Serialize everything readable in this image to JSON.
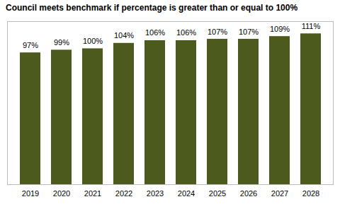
{
  "chart_data": {
    "type": "bar",
    "title": "Council meets benchmark if percentage is greater than or equal to 100%",
    "categories": [
      "2019",
      "2020",
      "2021",
      "2022",
      "2023",
      "2024",
      "2025",
      "2026",
      "2027",
      "2028"
    ],
    "values": [
      97,
      99,
      100,
      104,
      106,
      106,
      107,
      107,
      109,
      111
    ],
    "value_labels": [
      "97%",
      "99%",
      "100%",
      "104%",
      "106%",
      "106%",
      "107%",
      "107%",
      "109%",
      "111%"
    ],
    "color": "#4d5a1e",
    "ylim": [
      0,
      120
    ],
    "data_labels": true,
    "tick_labels": "x",
    "grid": false
  }
}
